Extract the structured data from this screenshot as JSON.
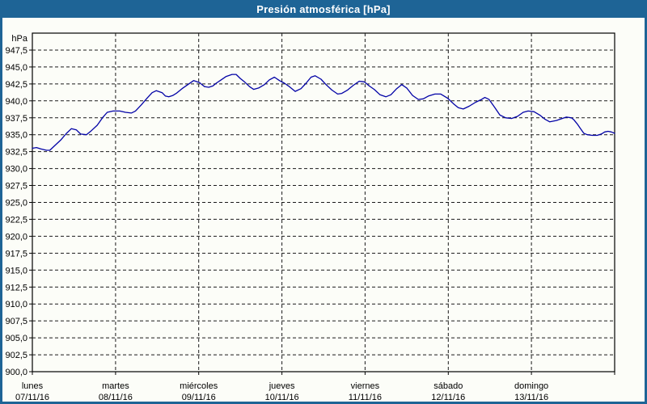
{
  "window": {
    "title": "Presión atmosférica [hPa]"
  },
  "colors": {
    "frame_color": "#1e6496",
    "titlebar_text": "#ffffff",
    "panel_color": "#fcfdf8",
    "grid_color": "#1a1a1a",
    "axis_color": "#000000",
    "label_color": "#000000",
    "line_color": "#0202a6"
  },
  "chart_data": {
    "type": "line",
    "title": "Presión atmosférica [hPa]",
    "legend": "none",
    "grid": "dashed",
    "y_axis": {
      "unit": "hPa",
      "min": 900,
      "max": 950,
      "tick_step": 2.5,
      "tick_values": [
        947.5,
        945.0,
        942.5,
        940.0,
        937.5,
        935.0,
        932.5,
        930.0,
        927.5,
        925.0,
        922.5,
        920.0,
        917.5,
        915.0,
        912.5,
        910.0,
        907.5,
        905.0,
        902.5,
        900.0
      ],
      "tick_labels": [
        "947,5",
        "945,0",
        "942,5",
        "940,0",
        "937,5",
        "935,0",
        "932,5",
        "930,0",
        "927,5",
        "925,0",
        "922,5",
        "920,0",
        "917,5",
        "915,0",
        "912,5",
        "910,0",
        "907,5",
        "905,0",
        "902,5",
        "900,0"
      ]
    },
    "x_axis": {
      "span_days": 7,
      "days": [
        {
          "name": "lunes",
          "date": "07/11/16"
        },
        {
          "name": "martes",
          "date": "08/11/16"
        },
        {
          "name": "miércoles",
          "date": "09/11/16"
        },
        {
          "name": "jueves",
          "date": "10/11/16"
        },
        {
          "name": "viernes",
          "date": "11/11/16"
        },
        {
          "name": "sábado",
          "date": "12/11/16"
        },
        {
          "name": "domingo",
          "date": "13/11/16"
        }
      ]
    },
    "series": [
      {
        "name": "Presión atmosférica",
        "unit": "hPa",
        "points": [
          [
            0.0,
            933.0
          ],
          [
            0.05,
            933.1
          ],
          [
            0.1,
            932.9
          ],
          [
            0.17,
            932.7
          ],
          [
            0.21,
            932.7
          ],
          [
            0.27,
            933.4
          ],
          [
            0.34,
            934.2
          ],
          [
            0.41,
            935.2
          ],
          [
            0.47,
            935.9
          ],
          [
            0.53,
            935.7
          ],
          [
            0.58,
            935.1
          ],
          [
            0.65,
            935.0
          ],
          [
            0.71,
            935.6
          ],
          [
            0.78,
            936.4
          ],
          [
            0.85,
            937.6
          ],
          [
            0.9,
            938.3
          ],
          [
            0.97,
            938.5
          ],
          [
            1.05,
            938.5
          ],
          [
            1.12,
            938.3
          ],
          [
            1.19,
            938.2
          ],
          [
            1.24,
            938.5
          ],
          [
            1.31,
            939.4
          ],
          [
            1.38,
            940.4
          ],
          [
            1.44,
            941.2
          ],
          [
            1.49,
            941.5
          ],
          [
            1.56,
            941.2
          ],
          [
            1.6,
            940.7
          ],
          [
            1.64,
            940.6
          ],
          [
            1.69,
            940.8
          ],
          [
            1.73,
            941.1
          ],
          [
            1.8,
            941.8
          ],
          [
            1.87,
            942.4
          ],
          [
            1.94,
            943.0
          ],
          [
            2.01,
            942.7
          ],
          [
            2.07,
            942.1
          ],
          [
            2.12,
            942.0
          ],
          [
            2.17,
            942.2
          ],
          [
            2.21,
            942.6
          ],
          [
            2.27,
            943.1
          ],
          [
            2.33,
            943.6
          ],
          [
            2.4,
            943.9
          ],
          [
            2.45,
            943.9
          ],
          [
            2.5,
            943.3
          ],
          [
            2.55,
            942.8
          ],
          [
            2.61,
            942.1
          ],
          [
            2.66,
            941.7
          ],
          [
            2.72,
            941.9
          ],
          [
            2.79,
            942.4
          ],
          [
            2.85,
            943.1
          ],
          [
            2.91,
            943.5
          ],
          [
            2.97,
            943.0
          ],
          [
            3.03,
            942.6
          ],
          [
            3.09,
            942.1
          ],
          [
            3.16,
            941.4
          ],
          [
            3.23,
            941.8
          ],
          [
            3.29,
            942.6
          ],
          [
            3.35,
            943.5
          ],
          [
            3.4,
            943.7
          ],
          [
            3.47,
            943.2
          ],
          [
            3.53,
            942.4
          ],
          [
            3.6,
            941.6
          ],
          [
            3.67,
            941.0
          ],
          [
            3.72,
            941.1
          ],
          [
            3.79,
            941.6
          ],
          [
            3.86,
            942.3
          ],
          [
            3.93,
            942.9
          ],
          [
            3.99,
            942.8
          ],
          [
            4.05,
            942.2
          ],
          [
            4.11,
            941.7
          ],
          [
            4.18,
            940.9
          ],
          [
            4.25,
            940.6
          ],
          [
            4.31,
            940.9
          ],
          [
            4.38,
            941.8
          ],
          [
            4.44,
            942.4
          ],
          [
            4.5,
            941.9
          ],
          [
            4.57,
            940.8
          ],
          [
            4.64,
            940.2
          ],
          [
            4.7,
            940.3
          ],
          [
            4.76,
            940.7
          ],
          [
            4.84,
            941.0
          ],
          [
            4.91,
            941.0
          ],
          [
            4.99,
            940.4
          ],
          [
            5.06,
            939.6
          ],
          [
            5.12,
            939.0
          ],
          [
            5.18,
            938.8
          ],
          [
            5.25,
            939.2
          ],
          [
            5.33,
            939.8
          ],
          [
            5.4,
            940.2
          ],
          [
            5.44,
            940.5
          ],
          [
            5.49,
            940.2
          ],
          [
            5.56,
            939.0
          ],
          [
            5.62,
            937.9
          ],
          [
            5.69,
            937.5
          ],
          [
            5.76,
            937.4
          ],
          [
            5.83,
            937.7
          ],
          [
            5.9,
            938.3
          ],
          [
            5.96,
            938.5
          ],
          [
            6.03,
            938.4
          ],
          [
            6.1,
            937.9
          ],
          [
            6.16,
            937.3
          ],
          [
            6.22,
            936.9
          ],
          [
            6.3,
            937.1
          ],
          [
            6.37,
            937.4
          ],
          [
            6.42,
            937.6
          ],
          [
            6.48,
            937.5
          ],
          [
            6.51,
            937.2
          ],
          [
            6.55,
            936.6
          ],
          [
            6.59,
            935.9
          ],
          [
            6.63,
            935.2
          ],
          [
            6.67,
            935.0
          ],
          [
            6.73,
            934.9
          ],
          [
            6.79,
            934.9
          ],
          [
            6.84,
            935.1
          ],
          [
            6.88,
            935.4
          ],
          [
            6.92,
            935.5
          ],
          [
            6.96,
            935.4
          ],
          [
            7.0,
            935.2
          ]
        ]
      }
    ]
  }
}
